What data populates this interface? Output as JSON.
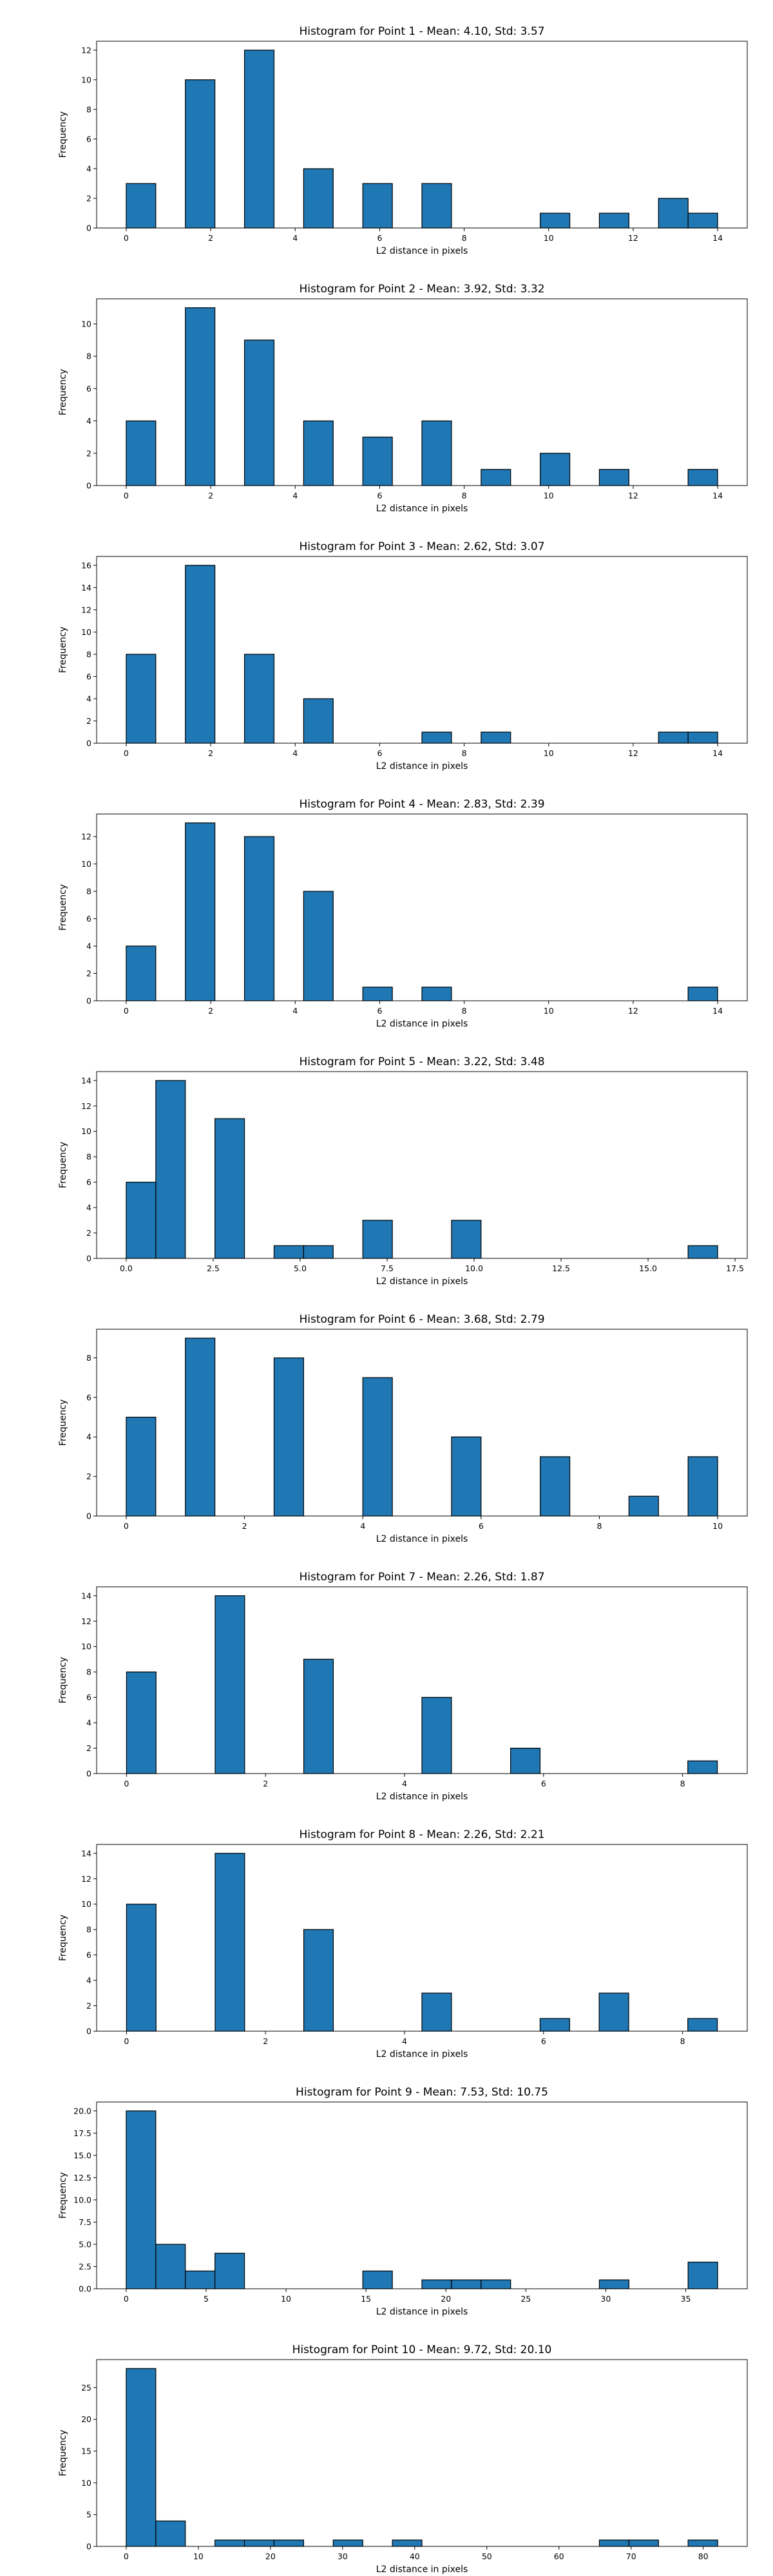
{
  "figure": {
    "background": "#ffffff"
  },
  "style": {
    "bar_fill": "#1f77b4",
    "bar_edge": "#000000"
  },
  "chart_data": [
    {
      "type": "bar",
      "title": "Histogram for Point 1 - Mean: 4.10, Std: 3.57",
      "xlabel": "L2 distance in pixels",
      "ylabel": "Frequency",
      "xlim": [
        -0.7,
        14.7
      ],
      "ylim": [
        0,
        12.6
      ],
      "xticks": [
        0,
        2,
        4,
        6,
        8,
        10,
        12,
        14
      ],
      "xtick_labels": [
        "0",
        "2",
        "4",
        "6",
        "8",
        "10",
        "12",
        "14"
      ],
      "yticks": [
        0,
        2,
        4,
        6,
        8,
        10,
        12
      ],
      "ytick_labels": [
        "0",
        "2",
        "4",
        "6",
        "8",
        "10",
        "12"
      ],
      "bin_edges": [
        0,
        0.7,
        1.4,
        2.1,
        2.8,
        3.5,
        4.2,
        4.9,
        5.6,
        6.3,
        7.0,
        7.7,
        8.4,
        9.1,
        9.8,
        10.5,
        11.2,
        11.9,
        12.6,
        13.3,
        14.0
      ],
      "counts": [
        3,
        0,
        10,
        0,
        12,
        0,
        4,
        0,
        3,
        0,
        3,
        0,
        0,
        0,
        1,
        0,
        1,
        0,
        2,
        1
      ]
    },
    {
      "type": "bar",
      "title": "Histogram for Point 2 - Mean: 3.92, Std: 3.32",
      "xlabel": "L2 distance in pixels",
      "ylabel": "Frequency",
      "xlim": [
        -0.7,
        14.7
      ],
      "ylim": [
        0,
        11.55
      ],
      "xticks": [
        0,
        2,
        4,
        6,
        8,
        10,
        12,
        14
      ],
      "xtick_labels": [
        "0",
        "2",
        "4",
        "6",
        "8",
        "10",
        "12",
        "14"
      ],
      "yticks": [
        0,
        2,
        4,
        6,
        8,
        10
      ],
      "ytick_labels": [
        "0",
        "2",
        "4",
        "6",
        "8",
        "10"
      ],
      "bin_edges": [
        0,
        0.7,
        1.4,
        2.1,
        2.8,
        3.5,
        4.2,
        4.9,
        5.6,
        6.3,
        7.0,
        7.7,
        8.4,
        9.1,
        9.8,
        10.5,
        11.2,
        11.9,
        12.6,
        13.3,
        14.0
      ],
      "counts": [
        4,
        0,
        11,
        0,
        9,
        0,
        4,
        0,
        3,
        0,
        4,
        0,
        1,
        0,
        2,
        0,
        1,
        0,
        0,
        1
      ]
    },
    {
      "type": "bar",
      "title": "Histogram for Point 3 - Mean: 2.62, Std: 3.07",
      "xlabel": "L2 distance in pixels",
      "ylabel": "Frequency",
      "xlim": [
        -0.7,
        14.7
      ],
      "ylim": [
        0,
        16.8
      ],
      "xticks": [
        0,
        2,
        4,
        6,
        8,
        10,
        12,
        14
      ],
      "xtick_labels": [
        "0",
        "2",
        "4",
        "6",
        "8",
        "10",
        "12",
        "14"
      ],
      "yticks": [
        0,
        2,
        4,
        6,
        8,
        10,
        12,
        14,
        16
      ],
      "ytick_labels": [
        "0",
        "2",
        "4",
        "6",
        "8",
        "10",
        "12",
        "14",
        "16"
      ],
      "bin_edges": [
        0,
        0.7,
        1.4,
        2.1,
        2.8,
        3.5,
        4.2,
        4.9,
        5.6,
        6.3,
        7.0,
        7.7,
        8.4,
        9.1,
        9.8,
        10.5,
        11.2,
        11.9,
        12.6,
        13.3,
        14.0
      ],
      "counts": [
        8,
        0,
        16,
        0,
        8,
        0,
        4,
        0,
        0,
        0,
        1,
        0,
        1,
        0,
        0,
        0,
        0,
        0,
        1,
        1
      ]
    },
    {
      "type": "bar",
      "title": "Histogram for Point 4 - Mean: 2.83, Std: 2.39",
      "xlabel": "L2 distance in pixels",
      "ylabel": "Frequency",
      "xlim": [
        -0.7,
        14.7
      ],
      "ylim": [
        0,
        13.65
      ],
      "xticks": [
        0,
        2,
        4,
        6,
        8,
        10,
        12,
        14
      ],
      "xtick_labels": [
        "0",
        "2",
        "4",
        "6",
        "8",
        "10",
        "12",
        "14"
      ],
      "yticks": [
        0,
        2,
        4,
        6,
        8,
        10,
        12
      ],
      "ytick_labels": [
        "0",
        "2",
        "4",
        "6",
        "8",
        "10",
        "12"
      ],
      "bin_edges": [
        0,
        0.7,
        1.4,
        2.1,
        2.8,
        3.5,
        4.2,
        4.9,
        5.6,
        6.3,
        7.0,
        7.7,
        8.4,
        9.1,
        9.8,
        10.5,
        11.2,
        11.9,
        12.6,
        13.3,
        14.0
      ],
      "counts": [
        4,
        0,
        13,
        0,
        12,
        0,
        8,
        0,
        1,
        0,
        1,
        0,
        0,
        0,
        0,
        0,
        0,
        0,
        0,
        1
      ]
    },
    {
      "type": "bar",
      "title": "Histogram for Point 5 - Mean: 3.22, Std: 3.48",
      "xlabel": "L2 distance in pixels",
      "ylabel": "Frequency",
      "xlim": [
        -0.85,
        17.85
      ],
      "ylim": [
        0,
        14.7
      ],
      "xticks": [
        0,
        2.5,
        5,
        7.5,
        10,
        12.5,
        15,
        17.5
      ],
      "xtick_labels": [
        "0.0",
        "2.5",
        "5.0",
        "7.5",
        "10.0",
        "12.5",
        "15.0",
        "17.5"
      ],
      "yticks": [
        0,
        2,
        4,
        6,
        8,
        10,
        12,
        14
      ],
      "ytick_labels": [
        "0",
        "2",
        "4",
        "6",
        "8",
        "10",
        "12",
        "14"
      ],
      "bin_edges": [
        0,
        0.85,
        1.7,
        2.55,
        3.4,
        4.25,
        5.1,
        5.95,
        6.8,
        7.65,
        8.5,
        9.35,
        10.2,
        11.05,
        11.9,
        12.75,
        13.6,
        14.45,
        15.3,
        16.15,
        17.0
      ],
      "counts": [
        6,
        14,
        0,
        11,
        0,
        1,
        1,
        0,
        3,
        0,
        0,
        3,
        0,
        0,
        0,
        0,
        0,
        0,
        0,
        1
      ]
    },
    {
      "type": "bar",
      "title": "Histogram for Point 6 - Mean: 3.68, Std: 2.79",
      "xlabel": "L2 distance in pixels",
      "ylabel": "Frequency",
      "xlim": [
        -0.5,
        10.5
      ],
      "ylim": [
        0,
        9.45
      ],
      "xticks": [
        0,
        2,
        4,
        6,
        8,
        10
      ],
      "xtick_labels": [
        "0",
        "2",
        "4",
        "6",
        "8",
        "10"
      ],
      "yticks": [
        0,
        2,
        4,
        6,
        8
      ],
      "ytick_labels": [
        "0",
        "2",
        "4",
        "6",
        "8"
      ],
      "bin_edges": [
        0,
        0.5,
        1.0,
        1.5,
        2.0,
        2.5,
        3.0,
        3.5,
        4.0,
        4.5,
        5.0,
        5.5,
        6.0,
        6.5,
        7.0,
        7.5,
        8.0,
        8.5,
        9.0,
        9.5,
        10.0
      ],
      "counts": [
        5,
        0,
        9,
        0,
        0,
        8,
        0,
        0,
        7,
        0,
        0,
        4,
        0,
        0,
        3,
        0,
        0,
        1,
        0,
        3
      ]
    },
    {
      "type": "bar",
      "title": "Histogram for Point 7 - Mean: 2.26, Std: 1.87",
      "xlabel": "L2 distance in pixels",
      "ylabel": "Frequency",
      "xlim": [
        -0.43,
        8.93
      ],
      "ylim": [
        0,
        14.7
      ],
      "xticks": [
        0,
        2,
        4,
        6,
        8
      ],
      "xtick_labels": [
        "0",
        "2",
        "4",
        "6",
        "8"
      ],
      "yticks": [
        0,
        2,
        4,
        6,
        8,
        10,
        12,
        14
      ],
      "ytick_labels": [
        "0",
        "2",
        "4",
        "6",
        "8",
        "10",
        "12",
        "14"
      ],
      "bin_edges": [
        0,
        0.425,
        0.85,
        1.275,
        1.7,
        2.125,
        2.55,
        2.975,
        3.4,
        3.825,
        4.25,
        4.675,
        5.1,
        5.525,
        5.95,
        6.375,
        6.8,
        7.225,
        7.65,
        8.075,
        8.5
      ],
      "counts": [
        8,
        0,
        0,
        14,
        0,
        0,
        9,
        0,
        0,
        0,
        6,
        0,
        0,
        2,
        0,
        0,
        0,
        0,
        0,
        1
      ]
    },
    {
      "type": "bar",
      "title": "Histogram for Point 8 - Mean: 2.26, Std: 2.21",
      "xlabel": "L2 distance in pixels",
      "ylabel": "Frequency",
      "xlim": [
        -0.43,
        8.93
      ],
      "ylim": [
        0,
        14.7
      ],
      "xticks": [
        0,
        2,
        4,
        6,
        8
      ],
      "xtick_labels": [
        "0",
        "2",
        "4",
        "6",
        "8"
      ],
      "yticks": [
        0,
        2,
        4,
        6,
        8,
        10,
        12,
        14
      ],
      "ytick_labels": [
        "0",
        "2",
        "4",
        "6",
        "8",
        "10",
        "12",
        "14"
      ],
      "bin_edges": [
        0,
        0.425,
        0.85,
        1.275,
        1.7,
        2.125,
        2.55,
        2.975,
        3.4,
        3.825,
        4.25,
        4.675,
        5.1,
        5.525,
        5.95,
        6.375,
        6.8,
        7.225,
        7.65,
        8.075,
        8.5
      ],
      "counts": [
        10,
        0,
        0,
        14,
        0,
        0,
        8,
        0,
        0,
        0,
        3,
        0,
        0,
        0,
        1,
        0,
        3,
        0,
        0,
        1
      ]
    },
    {
      "type": "bar",
      "title": "Histogram for Point 9 - Mean: 7.53, Std: 10.75",
      "xlabel": "L2 distance in pixels",
      "ylabel": "Frequency",
      "xlim": [
        -1.85,
        38.85
      ],
      "ylim": [
        0,
        21.0
      ],
      "xticks": [
        0,
        5,
        10,
        15,
        20,
        25,
        30,
        35
      ],
      "xtick_labels": [
        "0",
        "5",
        "10",
        "15",
        "20",
        "25",
        "30",
        "35"
      ],
      "yticks": [
        0,
        2.5,
        5,
        7.5,
        10,
        12.5,
        15,
        17.5,
        20
      ],
      "ytick_labels": [
        "0.0",
        "2.5",
        "5.0",
        "7.5",
        "10.0",
        "12.5",
        "15.0",
        "17.5",
        "20.0"
      ],
      "bin_edges": [
        0,
        1.85,
        3.7,
        5.55,
        7.4,
        9.25,
        11.1,
        12.95,
        14.8,
        16.65,
        18.5,
        20.35,
        22.2,
        24.05,
        25.9,
        27.75,
        29.6,
        31.45,
        33.3,
        35.15,
        37.0
      ],
      "counts": [
        20,
        5,
        2,
        4,
        0,
        0,
        0,
        0,
        2,
        0,
        1,
        1,
        1,
        0,
        0,
        0,
        1,
        0,
        0,
        3
      ]
    },
    {
      "type": "bar",
      "title": "Histogram for Point 10 - Mean: 9.72, Std: 20.10",
      "xlabel": "L2 distance in pixels",
      "ylabel": "Frequency",
      "xlim": [
        -4.1,
        86.1
      ],
      "ylim": [
        0,
        29.4
      ],
      "xticks": [
        0,
        10,
        20,
        30,
        40,
        50,
        60,
        70,
        80
      ],
      "xtick_labels": [
        "0",
        "10",
        "20",
        "30",
        "40",
        "50",
        "60",
        "70",
        "80"
      ],
      "yticks": [
        0,
        5,
        10,
        15,
        20,
        25
      ],
      "ytick_labels": [
        "0",
        "5",
        "10",
        "15",
        "20",
        "25"
      ],
      "bin_edges": [
        0,
        4.1,
        8.2,
        12.3,
        16.4,
        20.5,
        24.6,
        28.7,
        32.8,
        36.9,
        41.0,
        45.1,
        49.2,
        53.3,
        57.4,
        61.5,
        65.6,
        69.7,
        73.8,
        77.9,
        82.0
      ],
      "counts": [
        28,
        4,
        0,
        1,
        1,
        1,
        0,
        1,
        0,
        1,
        0,
        0,
        0,
        0,
        0,
        0,
        1,
        1,
        0,
        1
      ]
    }
  ]
}
